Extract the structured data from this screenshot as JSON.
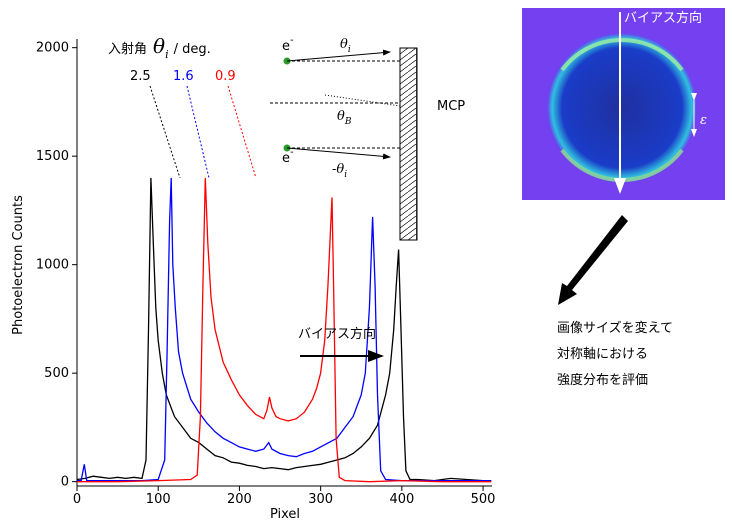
{
  "chart_data": {
    "type": "line",
    "xlabel": "Pixel",
    "ylabel": "Photoelectron Counts",
    "xlim": [
      0,
      511
    ],
    "ylim": [
      -20,
      2040
    ],
    "xticks": [
      0,
      100,
      200,
      300,
      400,
      500
    ],
    "yticks": [
      0,
      500,
      1000,
      1500,
      2000
    ],
    "series": [
      {
        "name": "2.5",
        "color": "#000000",
        "x": [
          0,
          10,
          20,
          30,
          40,
          50,
          60,
          70,
          80,
          85,
          88,
          91,
          94,
          97,
          100,
          105,
          110,
          120,
          130,
          140,
          150,
          160,
          170,
          180,
          190,
          200,
          210,
          220,
          230,
          240,
          250,
          260,
          270,
          280,
          290,
          300,
          310,
          320,
          330,
          340,
          350,
          360,
          370,
          380,
          385,
          390,
          393,
          396,
          399,
          402,
          405,
          410,
          420,
          440,
          460,
          480,
          500,
          510
        ],
        "values": [
          10,
          15,
          25,
          20,
          15,
          20,
          15,
          20,
          15,
          100,
          700,
          1400,
          1100,
          800,
          650,
          500,
          400,
          300,
          250,
          200,
          180,
          150,
          120,
          110,
          90,
          85,
          75,
          70,
          60,
          65,
          60,
          55,
          65,
          70,
          75,
          80,
          90,
          100,
          110,
          130,
          160,
          200,
          260,
          400,
          500,
          700,
          900,
          1070,
          700,
          300,
          50,
          10,
          10,
          5,
          15,
          10,
          5,
          5
        ]
      },
      {
        "name": "1.6",
        "color": "#0000ff",
        "x": [
          0,
          5,
          9,
          12,
          20,
          40,
          60,
          80,
          100,
          108,
          111,
          114,
          116,
          118,
          121,
          125,
          130,
          140,
          150,
          160,
          170,
          180,
          190,
          200,
          210,
          220,
          230,
          236,
          240,
          250,
          260,
          270,
          280,
          290,
          300,
          310,
          320,
          330,
          340,
          350,
          355,
          360,
          364,
          367,
          370,
          374,
          380,
          400,
          450,
          510
        ],
        "values": [
          5,
          5,
          80,
          5,
          5,
          5,
          5,
          5,
          10,
          100,
          600,
          1200,
          1400,
          1000,
          800,
          600,
          500,
          380,
          320,
          270,
          230,
          200,
          180,
          160,
          150,
          140,
          150,
          180,
          150,
          130,
          120,
          115,
          130,
          140,
          160,
          180,
          200,
          250,
          300,
          400,
          500,
          800,
          1220,
          900,
          400,
          50,
          10,
          5,
          5,
          5
        ]
      },
      {
        "name": "0.9",
        "color": "#ff0000",
        "x": [
          0,
          50,
          100,
          140,
          148,
          152,
          155,
          158,
          161,
          165,
          170,
          180,
          190,
          200,
          210,
          220,
          230,
          234,
          237,
          240,
          245,
          250,
          260,
          270,
          280,
          290,
          295,
          300,
          305,
          309,
          312,
          314,
          316,
          319,
          323,
          330,
          360,
          400,
          450,
          510
        ],
        "values": [
          0,
          0,
          5,
          10,
          30,
          300,
          900,
          1400,
          1100,
          850,
          700,
          550,
          470,
          400,
          350,
          310,
          290,
          330,
          390,
          340,
          300,
          290,
          280,
          290,
          320,
          380,
          430,
          500,
          650,
          900,
          1150,
          1310,
          900,
          200,
          20,
          5,
          0,
          5,
          0,
          0
        ]
      }
    ],
    "annotations": {
      "legend_title": {
        "prefix": "入射角",
        "symbol": "θ",
        "sub": "i",
        "suffix": "/ deg."
      },
      "electron_top": {
        "base": "e",
        "sup": "-"
      },
      "electron_bottom": {
        "base": "e",
        "sup": "-"
      },
      "theta_i": {
        "symbol": "θ",
        "sub": "i"
      },
      "theta_b": {
        "symbol": "θ",
        "sub": "B"
      },
      "minus_theta_i": {
        "symbol": "-θ",
        "sub": "i"
      },
      "mcp": "MCP",
      "image_label": "バイアス方向",
      "epsilon": "ε",
      "bias_direction": "バイアス方向",
      "note": [
        "画像サイズを変えて",
        "対称軸における",
        "強度分布を評価"
      ]
    }
  }
}
